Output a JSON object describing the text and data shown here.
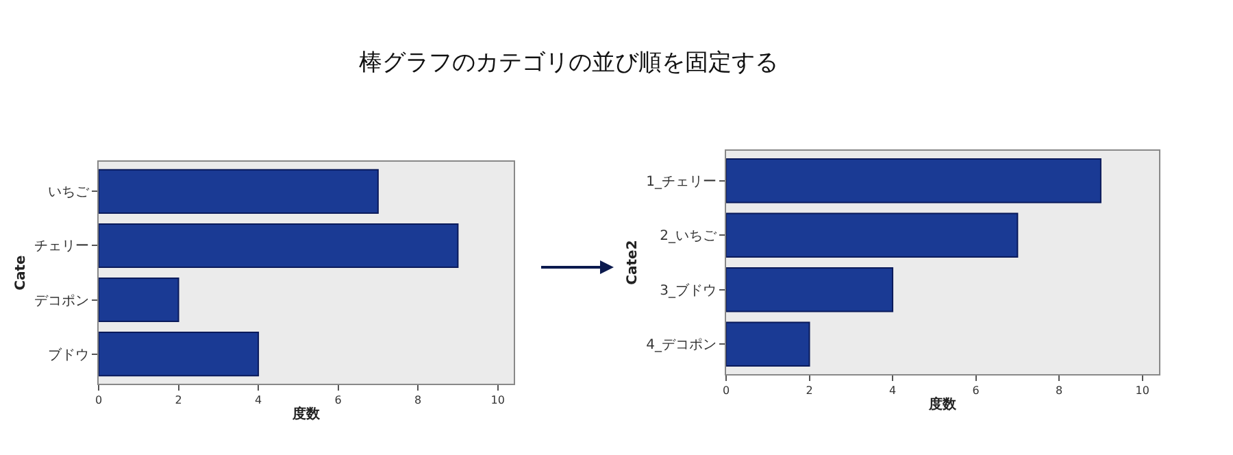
{
  "chart_data": [
    {
      "type": "bar",
      "title": "棒グラフのカテゴリの並び順を固定する",
      "orientation": "horizontal",
      "categories": [
        "いちご",
        "チェリー",
        "デコポン",
        "ブドウ"
      ],
      "values": [
        7,
        9,
        2,
        4
      ],
      "color": "#1a3a94",
      "xlabel": "度数",
      "ylabel": "Cate",
      "xlim": [
        0,
        10.4
      ],
      "xticks": [
        0,
        2,
        4,
        6,
        8,
        10
      ]
    },
    {
      "type": "bar",
      "orientation": "horizontal",
      "categories": [
        "1_チェリー",
        "2_いちご",
        "3_ブドウ",
        "4_デコポン"
      ],
      "values": [
        9,
        7,
        4,
        2
      ],
      "color": "#1a3a94",
      "xlabel": "度数",
      "ylabel": "Cate2",
      "xlim": [
        0,
        10.4
      ],
      "xticks": [
        0,
        2,
        4,
        6,
        8,
        10
      ]
    }
  ]
}
